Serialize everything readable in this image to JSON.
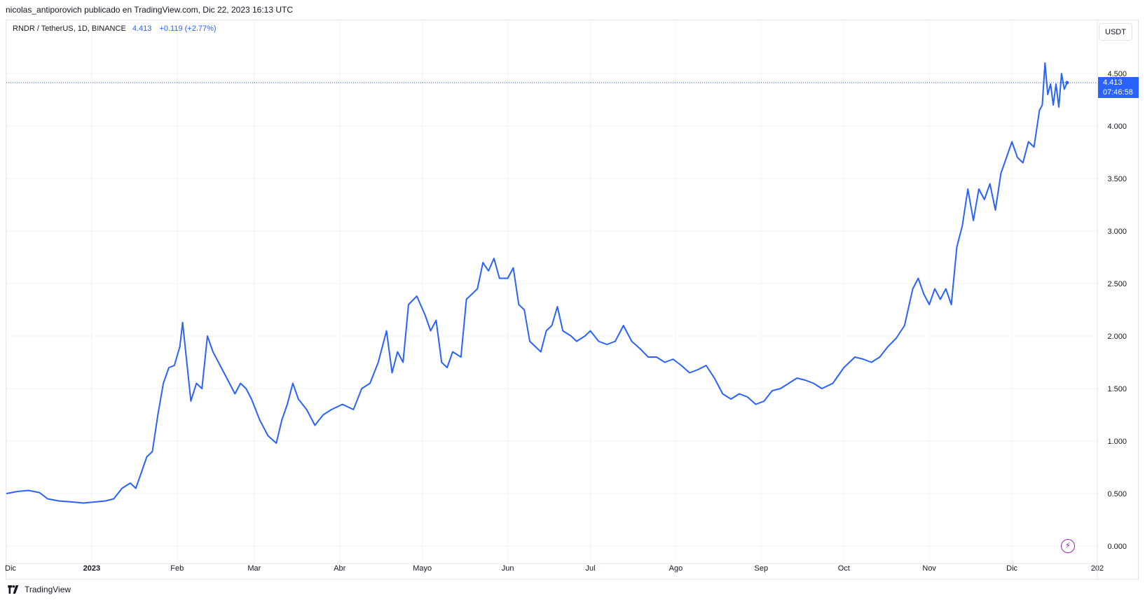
{
  "header": {
    "published_by": "nicolas_antiporovich publicado en TradingView.com, Dic 22, 2023 16:13 UTC"
  },
  "legend": {
    "symbol": "RNDR / TetherUS, 1D, BINANCE",
    "last": "4.413",
    "change": "+0.119 (+2.77%)"
  },
  "unit_button": "USDT",
  "price_label": {
    "price": "4.413",
    "countdown": "07:46:58"
  },
  "footer": {
    "brand": "TradingView"
  },
  "icons": {
    "logo": "tradingview-logo-icon",
    "alert": "lightning-bolt-icon"
  },
  "colors": {
    "line": "#2962ff",
    "grid": "#f0f3fa",
    "text": "#131722"
  },
  "chart_data": {
    "type": "line",
    "title": "RNDR / TetherUS, 1D, BINANCE",
    "ylim": [
      0,
      5.2
    ],
    "y_ticks": [
      "0.000",
      "0.500",
      "1.000",
      "1.500",
      "2.000",
      "2.500",
      "3.000",
      "3.500",
      "4.000",
      "4.500"
    ],
    "x_start": "2022-12-01",
    "x_end": "2024-01-01",
    "x_ticks": [
      {
        "label": "Dic",
        "date": "2022-12-01"
      },
      {
        "label": "2023",
        "date": "2023-01-01"
      },
      {
        "label": "Feb",
        "date": "2023-02-01"
      },
      {
        "label": "Mar",
        "date": "2023-03-01"
      },
      {
        "label": "Abr",
        "date": "2023-04-01"
      },
      {
        "label": "Mayo",
        "date": "2023-05-01"
      },
      {
        "label": "Jun",
        "date": "2023-06-01"
      },
      {
        "label": "Jul",
        "date": "2023-07-01"
      },
      {
        "label": "Ago",
        "date": "2023-08-01"
      },
      {
        "label": "Sep",
        "date": "2023-09-01"
      },
      {
        "label": "Oct",
        "date": "2023-10-01"
      },
      {
        "label": "Nov",
        "date": "2023-11-01"
      },
      {
        "label": "Dic",
        "date": "2023-12-01"
      },
      {
        "label": "202",
        "date": "2024-01-01"
      }
    ],
    "last_price": 4.413,
    "series": [
      {
        "values": [
          [
            "2022-12-01",
            0.5
          ],
          [
            "2022-12-05",
            0.52
          ],
          [
            "2022-12-09",
            0.53
          ],
          [
            "2022-12-13",
            0.51
          ],
          [
            "2022-12-16",
            0.45
          ],
          [
            "2022-12-20",
            0.43
          ],
          [
            "2022-12-25",
            0.42
          ],
          [
            "2022-12-29",
            0.41
          ],
          [
            "2023-01-02",
            0.42
          ],
          [
            "2023-01-06",
            0.43
          ],
          [
            "2023-01-09",
            0.45
          ],
          [
            "2023-01-12",
            0.55
          ],
          [
            "2023-01-15",
            0.6
          ],
          [
            "2023-01-17",
            0.55
          ],
          [
            "2023-01-19",
            0.7
          ],
          [
            "2023-01-21",
            0.85
          ],
          [
            "2023-01-23",
            0.9
          ],
          [
            "2023-01-25",
            1.25
          ],
          [
            "2023-01-27",
            1.55
          ],
          [
            "2023-01-29",
            1.7
          ],
          [
            "2023-01-31",
            1.72
          ],
          [
            "2023-02-02",
            1.9
          ],
          [
            "2023-02-03",
            2.13
          ],
          [
            "2023-02-06",
            1.38
          ],
          [
            "2023-02-08",
            1.55
          ],
          [
            "2023-02-10",
            1.5
          ],
          [
            "2023-02-12",
            2.0
          ],
          [
            "2023-02-14",
            1.85
          ],
          [
            "2023-02-17",
            1.7
          ],
          [
            "2023-02-20",
            1.55
          ],
          [
            "2023-02-22",
            1.45
          ],
          [
            "2023-02-24",
            1.55
          ],
          [
            "2023-02-26",
            1.5
          ],
          [
            "2023-02-28",
            1.4
          ],
          [
            "2023-03-03",
            1.2
          ],
          [
            "2023-03-06",
            1.05
          ],
          [
            "2023-03-09",
            0.98
          ],
          [
            "2023-03-11",
            1.2
          ],
          [
            "2023-03-13",
            1.35
          ],
          [
            "2023-03-15",
            1.55
          ],
          [
            "2023-03-17",
            1.4
          ],
          [
            "2023-03-20",
            1.3
          ],
          [
            "2023-03-23",
            1.15
          ],
          [
            "2023-03-26",
            1.25
          ],
          [
            "2023-03-29",
            1.3
          ],
          [
            "2023-04-02",
            1.35
          ],
          [
            "2023-04-06",
            1.3
          ],
          [
            "2023-04-09",
            1.5
          ],
          [
            "2023-04-12",
            1.55
          ],
          [
            "2023-04-15",
            1.75
          ],
          [
            "2023-04-18",
            2.05
          ],
          [
            "2023-04-20",
            1.65
          ],
          [
            "2023-04-22",
            1.85
          ],
          [
            "2023-04-24",
            1.75
          ],
          [
            "2023-04-26",
            2.3
          ],
          [
            "2023-04-29",
            2.38
          ],
          [
            "2023-05-02",
            2.2
          ],
          [
            "2023-05-04",
            2.05
          ],
          [
            "2023-05-06",
            2.15
          ],
          [
            "2023-05-08",
            1.75
          ],
          [
            "2023-05-10",
            1.7
          ],
          [
            "2023-05-12",
            1.85
          ],
          [
            "2023-05-15",
            1.8
          ],
          [
            "2023-05-17",
            2.35
          ],
          [
            "2023-05-19",
            2.4
          ],
          [
            "2023-05-21",
            2.45
          ],
          [
            "2023-05-23",
            2.7
          ],
          [
            "2023-05-25",
            2.62
          ],
          [
            "2023-05-27",
            2.74
          ],
          [
            "2023-05-29",
            2.55
          ],
          [
            "2023-06-01",
            2.55
          ],
          [
            "2023-06-03",
            2.65
          ],
          [
            "2023-06-05",
            2.3
          ],
          [
            "2023-06-07",
            2.25
          ],
          [
            "2023-06-09",
            1.95
          ],
          [
            "2023-06-11",
            1.9
          ],
          [
            "2023-06-13",
            1.85
          ],
          [
            "2023-06-15",
            2.05
          ],
          [
            "2023-06-17",
            2.1
          ],
          [
            "2023-06-19",
            2.28
          ],
          [
            "2023-06-21",
            2.05
          ],
          [
            "2023-06-24",
            2.0
          ],
          [
            "2023-06-26",
            1.95
          ],
          [
            "2023-06-29",
            2.0
          ],
          [
            "2023-07-01",
            2.05
          ],
          [
            "2023-07-04",
            1.95
          ],
          [
            "2023-07-07",
            1.92
          ],
          [
            "2023-07-10",
            1.95
          ],
          [
            "2023-07-13",
            2.1
          ],
          [
            "2023-07-16",
            1.95
          ],
          [
            "2023-07-19",
            1.88
          ],
          [
            "2023-07-22",
            1.8
          ],
          [
            "2023-07-25",
            1.8
          ],
          [
            "2023-07-28",
            1.75
          ],
          [
            "2023-07-31",
            1.78
          ],
          [
            "2023-08-03",
            1.72
          ],
          [
            "2023-08-06",
            1.65
          ],
          [
            "2023-08-09",
            1.68
          ],
          [
            "2023-08-12",
            1.72
          ],
          [
            "2023-08-15",
            1.6
          ],
          [
            "2023-08-18",
            1.45
          ],
          [
            "2023-08-21",
            1.4
          ],
          [
            "2023-08-24",
            1.45
          ],
          [
            "2023-08-27",
            1.42
          ],
          [
            "2023-08-30",
            1.35
          ],
          [
            "2023-09-02",
            1.38
          ],
          [
            "2023-09-05",
            1.48
          ],
          [
            "2023-09-08",
            1.5
          ],
          [
            "2023-09-11",
            1.55
          ],
          [
            "2023-09-14",
            1.6
          ],
          [
            "2023-09-17",
            1.58
          ],
          [
            "2023-09-20",
            1.55
          ],
          [
            "2023-09-23",
            1.5
          ],
          [
            "2023-09-27",
            1.55
          ],
          [
            "2023-10-01",
            1.7
          ],
          [
            "2023-10-05",
            1.8
          ],
          [
            "2023-10-08",
            1.78
          ],
          [
            "2023-10-11",
            1.75
          ],
          [
            "2023-10-14",
            1.8
          ],
          [
            "2023-10-17",
            1.9
          ],
          [
            "2023-10-20",
            1.98
          ],
          [
            "2023-10-23",
            2.1
          ],
          [
            "2023-10-26",
            2.45
          ],
          [
            "2023-10-28",
            2.55
          ],
          [
            "2023-10-30",
            2.4
          ],
          [
            "2023-11-01",
            2.3
          ],
          [
            "2023-11-03",
            2.45
          ],
          [
            "2023-11-05",
            2.35
          ],
          [
            "2023-11-07",
            2.45
          ],
          [
            "2023-11-09",
            2.3
          ],
          [
            "2023-11-11",
            2.85
          ],
          [
            "2023-11-13",
            3.05
          ],
          [
            "2023-11-15",
            3.4
          ],
          [
            "2023-11-17",
            3.1
          ],
          [
            "2023-11-19",
            3.4
          ],
          [
            "2023-11-21",
            3.3
          ],
          [
            "2023-11-23",
            3.45
          ],
          [
            "2023-11-25",
            3.2
          ],
          [
            "2023-11-27",
            3.55
          ],
          [
            "2023-11-29",
            3.7
          ],
          [
            "2023-12-01",
            3.85
          ],
          [
            "2023-12-03",
            3.7
          ],
          [
            "2023-12-05",
            3.65
          ],
          [
            "2023-12-07",
            3.85
          ],
          [
            "2023-12-09",
            3.8
          ],
          [
            "2023-12-11",
            4.15
          ],
          [
            "2023-12-12",
            4.2
          ],
          [
            "2023-12-13",
            4.6
          ],
          [
            "2023-12-14",
            4.3
          ],
          [
            "2023-12-15",
            4.4
          ],
          [
            "2023-12-16",
            4.2
          ],
          [
            "2023-12-17",
            4.4
          ],
          [
            "2023-12-18",
            4.18
          ],
          [
            "2023-12-19",
            4.5
          ],
          [
            "2023-12-20",
            4.35
          ],
          [
            "2023-12-21",
            4.413
          ]
        ]
      }
    ]
  }
}
